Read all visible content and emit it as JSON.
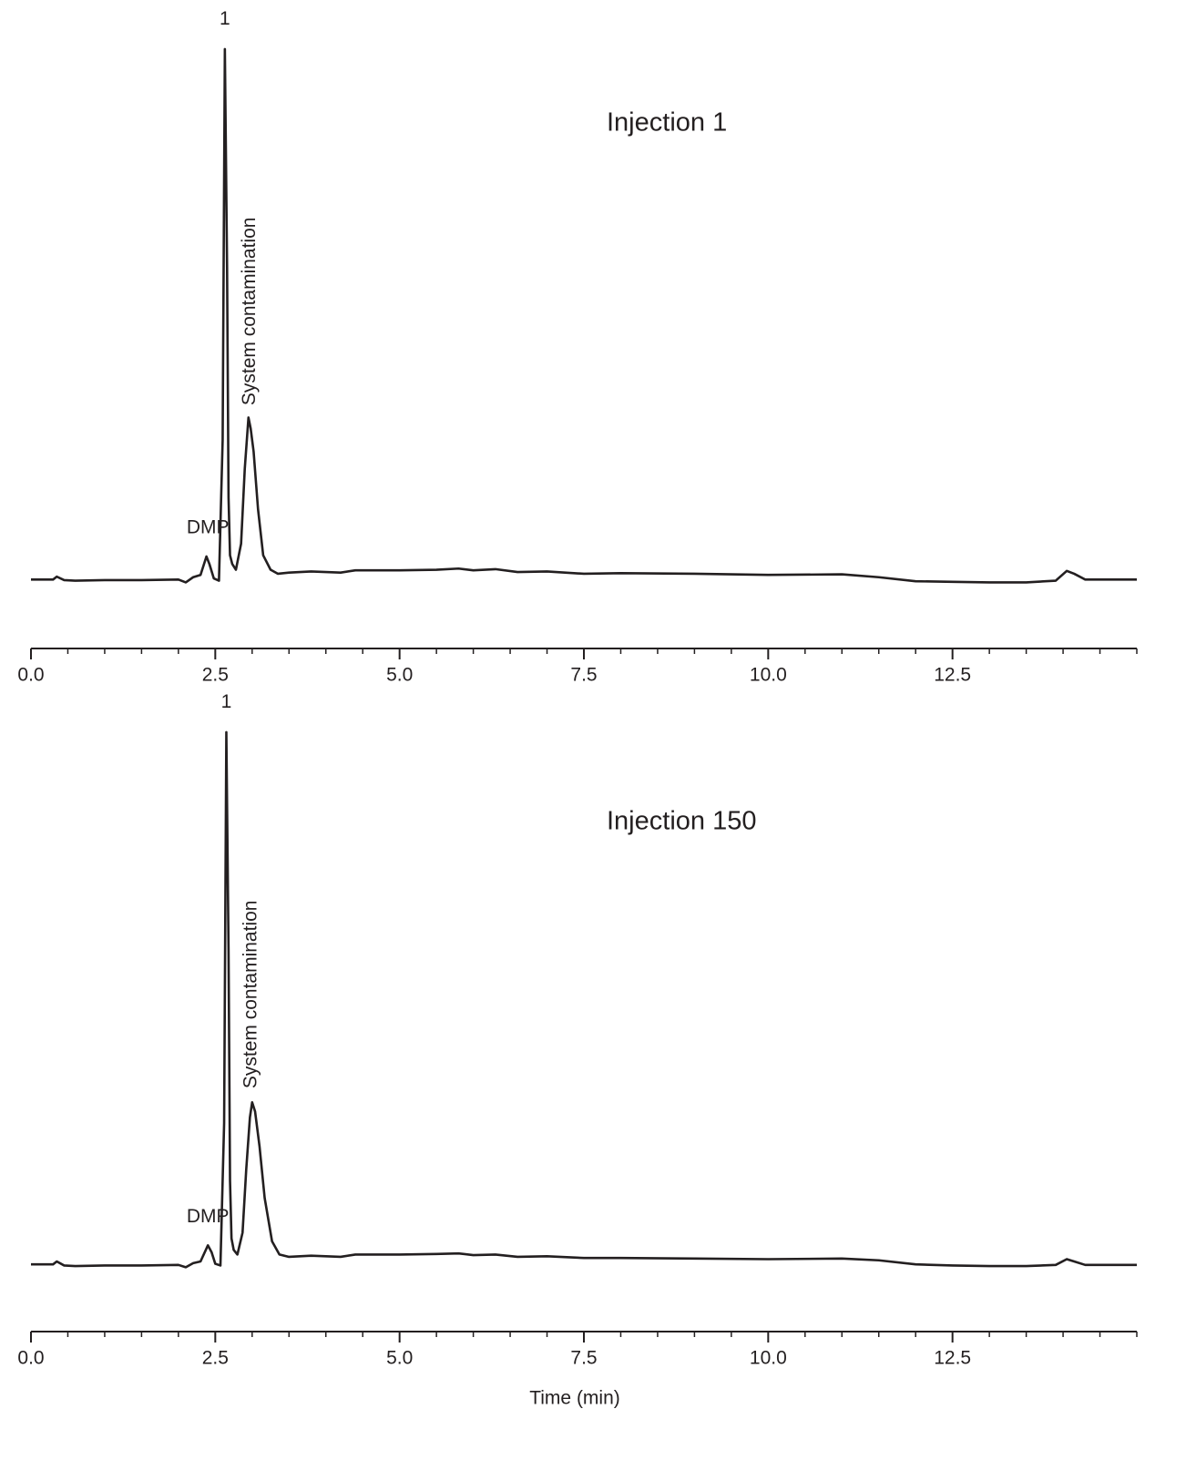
{
  "chart_data": [
    {
      "type": "line",
      "title": "Injection 1",
      "x": [
        0,
        0.3,
        0.35,
        0.45,
        0.6,
        1.0,
        1.5,
        2.0,
        2.1,
        2.2,
        2.3,
        2.38,
        2.42,
        2.48,
        2.55,
        2.6,
        2.63,
        2.66,
        2.68,
        2.7,
        2.73,
        2.78,
        2.85,
        2.9,
        2.95,
        2.98,
        3.02,
        3.08,
        3.15,
        3.25,
        3.35,
        3.5,
        3.8,
        4.2,
        4.4,
        5.0,
        5.5,
        5.8,
        6.0,
        6.3,
        6.6,
        7.0,
        7.5,
        8.0,
        9.0,
        10.0,
        11.0,
        11.5,
        12.0,
        12.5,
        13.0,
        13.5,
        13.9,
        14.05,
        14.15,
        14.3,
        14.5,
        15.0
      ],
      "values": [
        5.8,
        5.8,
        6.3,
        5.7,
        5.6,
        5.7,
        5.7,
        5.8,
        5.3,
        6.2,
        6.6,
        9.8,
        8.5,
        6.0,
        5.6,
        30,
        97.8,
        60,
        20,
        10,
        8.5,
        7.5,
        12,
        25,
        33.9,
        32,
        28,
        18,
        10,
        7.5,
        6.8,
        7.0,
        7.2,
        7.0,
        7.4,
        7.4,
        7.5,
        7.7,
        7.4,
        7.6,
        7.1,
        7.2,
        6.8,
        6.9,
        6.8,
        6.6,
        6.7,
        6.2,
        5.5,
        5.4,
        5.3,
        5.3,
        5.6,
        7.3,
        6.8,
        5.8,
        5.8,
        5.8
      ],
      "color": "#231f20",
      "xlim": [
        0,
        15
      ],
      "ylim": [
        0,
        100
      ],
      "xticks": [
        {
          "value": 0,
          "label": "0.0"
        },
        2.5,
        {
          "value": 5,
          "label": "5.0"
        },
        7.5,
        {
          "value": 10,
          "label": "10.0"
        },
        12.5
      ],
      "xminorticks": [
        0.5,
        1,
        1.5,
        2,
        3,
        3.5,
        4,
        4.5,
        5.5,
        6,
        6.5,
        7,
        8,
        8.5,
        9,
        9.5,
        10.5,
        11,
        11.5,
        12,
        13,
        13.5,
        14,
        14.5,
        15
      ],
      "annotations": [
        {
          "text": "1",
          "x": 2.63,
          "y": 101
        },
        {
          "text": "DMP",
          "x": 2.4,
          "y": 12.8
        },
        {
          "text": "System contamination",
          "x": 2.97,
          "y": 36,
          "rotate": -90
        }
      ]
    },
    {
      "type": "line",
      "title": "Injection 150",
      "xlabel": "Time (min)",
      "x": [
        0,
        0.3,
        0.35,
        0.45,
        0.6,
        1.0,
        1.5,
        2.0,
        2.1,
        2.2,
        2.3,
        2.4,
        2.45,
        2.5,
        2.57,
        2.62,
        2.65,
        2.68,
        2.7,
        2.72,
        2.75,
        2.8,
        2.87,
        2.92,
        2.97,
        3.0,
        3.04,
        3.1,
        3.17,
        3.27,
        3.37,
        3.5,
        3.8,
        4.2,
        4.4,
        5.0,
        5.5,
        5.8,
        6.0,
        6.3,
        6.6,
        7.0,
        7.5,
        8.0,
        9.0,
        10.0,
        11.0,
        11.5,
        12.0,
        12.5,
        13.0,
        13.5,
        13.9,
        14.05,
        14.15,
        14.3,
        14.5,
        15.0
      ],
      "values": [
        5.5,
        5.5,
        6.0,
        5.3,
        5.2,
        5.3,
        5.3,
        5.4,
        5.0,
        5.7,
        6.0,
        8.8,
        7.6,
        5.6,
        5.3,
        30,
        97.8,
        60,
        20,
        10,
        8.0,
        7.2,
        11,
        22,
        31,
        33.6,
        32,
        26,
        17,
        9.5,
        7.2,
        6.8,
        7.0,
        6.8,
        7.2,
        7.2,
        7.3,
        7.4,
        7.1,
        7.2,
        6.8,
        6.9,
        6.6,
        6.6,
        6.5,
        6.4,
        6.5,
        6.2,
        5.5,
        5.3,
        5.2,
        5.2,
        5.4,
        6.4,
        6.0,
        5.4,
        5.4,
        5.4
      ],
      "color": "#231f20",
      "xlim": [
        0,
        15
      ],
      "ylim": [
        0,
        100
      ],
      "xticks": [
        {
          "value": 0,
          "label": "0.0"
        },
        2.5,
        {
          "value": 5,
          "label": "5.0"
        },
        7.5,
        {
          "value": 10,
          "label": "10.0"
        },
        12.5
      ],
      "xminorticks": [
        0.5,
        1,
        1.5,
        2,
        3,
        3.5,
        4,
        4.5,
        5.5,
        6,
        6.5,
        7,
        8,
        8.5,
        9,
        9.5,
        10.5,
        11,
        11.5,
        12,
        13,
        13.5,
        14,
        14.5,
        15
      ],
      "annotations": [
        {
          "text": "1",
          "x": 2.65,
          "y": 101
        },
        {
          "text": "DMP",
          "x": 2.4,
          "y": 11.8
        },
        {
          "text": "System contamination",
          "x": 2.99,
          "y": 36,
          "rotate": -90
        }
      ]
    }
  ]
}
